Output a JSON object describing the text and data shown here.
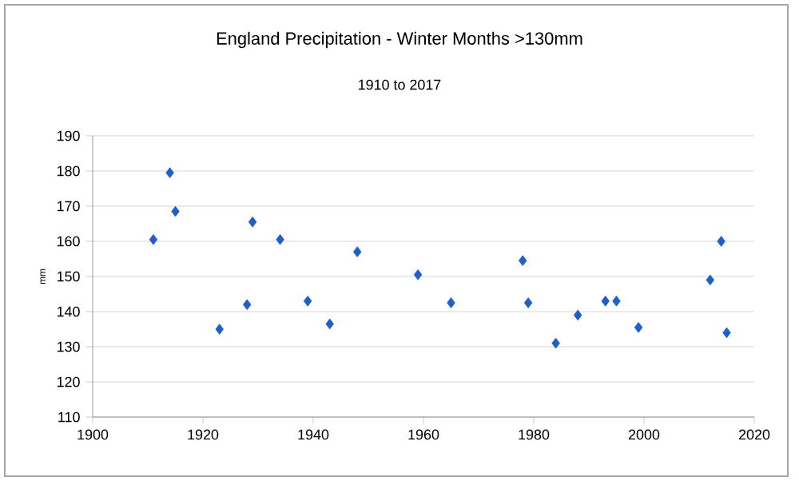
{
  "chart_data": {
    "type": "scatter",
    "title": "England Precipitation - Winter Months >130mm",
    "subtitle": "1910 to 2017",
    "ylabel": "mm",
    "x": [
      1911,
      1914,
      1915,
      1923,
      1928,
      1929,
      1934,
      1939,
      1943,
      1948,
      1959,
      1965,
      1978,
      1979,
      1984,
      1988,
      1993,
      1995,
      1999,
      2012,
      2014,
      2015
    ],
    "values": [
      160.5,
      179.5,
      168.5,
      135,
      142,
      165.5,
      160.5,
      143,
      136.5,
      157,
      150.5,
      142.5,
      154.5,
      142.5,
      131,
      139,
      143,
      143,
      135.5,
      149,
      160,
      134
    ],
    "color": "#1f5fc8",
    "marker": "diamond",
    "grid": "y",
    "xlim": [
      1900,
      2020
    ],
    "xticks": [
      1900,
      1920,
      1940,
      1960,
      1980,
      2000,
      2020
    ],
    "ylim": [
      110,
      190
    ],
    "yticks": [
      110,
      120,
      130,
      140,
      150,
      160,
      170,
      180,
      190
    ]
  }
}
